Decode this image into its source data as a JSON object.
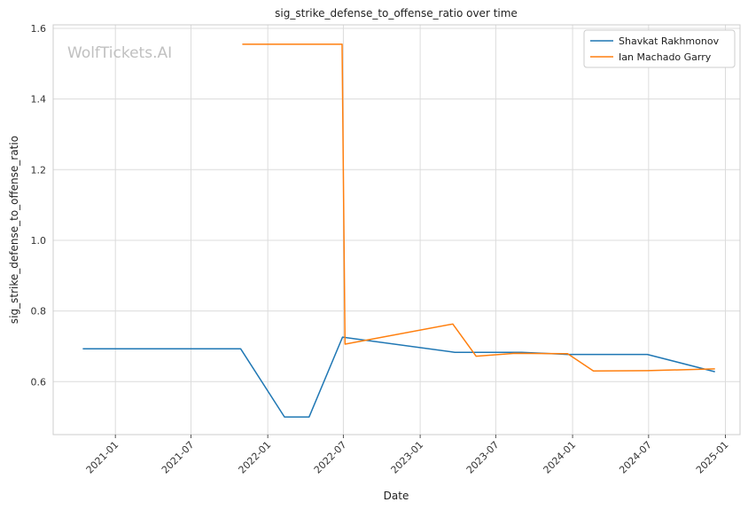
{
  "chart_data": {
    "type": "line",
    "title": "sig_strike_defense_to_offense_ratio over time",
    "xlabel": "Date",
    "ylabel": "sig_strike_defense_to_offense_ratio",
    "watermark": "WolfTickets.AI",
    "xlim": [
      "2020-08-05",
      "2025-02-05"
    ],
    "ylim": [
      0.45,
      1.61
    ],
    "x_ticks": [
      "2021-01",
      "2021-07",
      "2022-01",
      "2022-07",
      "2023-01",
      "2023-07",
      "2024-01",
      "2024-07",
      "2025-01"
    ],
    "y_ticks": [
      "0.6",
      "0.8",
      "1.0",
      "1.2",
      "1.4",
      "1.6"
    ],
    "grid": true,
    "legend": "top-right",
    "series": [
      {
        "name": "Shavkat Rakhmonov",
        "color": "#1f77b4",
        "points": [
          {
            "x": "2020-10-15",
            "y": 0.693
          },
          {
            "x": "2021-10-28",
            "y": 0.693
          },
          {
            "x": "2022-02-10",
            "y": 0.5
          },
          {
            "x": "2022-04-10",
            "y": 0.5
          },
          {
            "x": "2022-06-29",
            "y": 0.726
          },
          {
            "x": "2023-03-25",
            "y": 0.683
          },
          {
            "x": "2023-09-01",
            "y": 0.683
          },
          {
            "x": "2023-12-20",
            "y": 0.677
          },
          {
            "x": "2024-06-28",
            "y": 0.677
          },
          {
            "x": "2024-12-07",
            "y": 0.628
          }
        ]
      },
      {
        "name": "Ian Machado Garry",
        "color": "#ff7f0e",
        "points": [
          {
            "x": "2021-11-01",
            "y": 1.555
          },
          {
            "x": "2022-06-28",
            "y": 1.555
          },
          {
            "x": "2022-07-05",
            "y": 0.706
          },
          {
            "x": "2023-03-20",
            "y": 0.763
          },
          {
            "x": "2023-05-15",
            "y": 0.672
          },
          {
            "x": "2023-08-15",
            "y": 0.68
          },
          {
            "x": "2023-12-20",
            "y": 0.679
          },
          {
            "x": "2024-02-20",
            "y": 0.63
          },
          {
            "x": "2024-06-28",
            "y": 0.631
          },
          {
            "x": "2024-12-07",
            "y": 0.636
          }
        ]
      }
    ]
  }
}
